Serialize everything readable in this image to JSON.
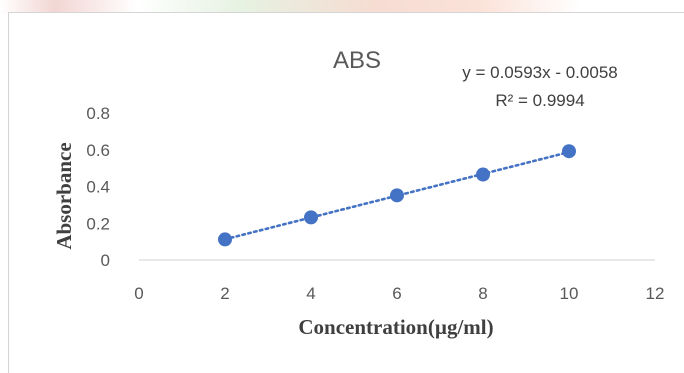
{
  "colors": {
    "series": "#4472c4",
    "axis_text": "#595959",
    "gridline": "#d9d9d9"
  },
  "chart_data": {
    "type": "scatter",
    "title": "ABS",
    "xlabel": "Concentration(µg/ml)",
    "ylabel": "Absorbance",
    "xlim": [
      0,
      12
    ],
    "ylim": [
      0,
      0.8
    ],
    "x_ticks": [
      0,
      2,
      4,
      6,
      8,
      10,
      12
    ],
    "y_ticks": [
      0,
      0.2,
      0.4,
      0.6,
      0.8
    ],
    "y_tick_labels": [
      "0",
      "0.2",
      "0.4",
      "0.6",
      "0.8"
    ],
    "x": [
      2,
      4,
      6,
      8,
      10
    ],
    "y": [
      0.112,
      0.232,
      0.352,
      0.465,
      0.592
    ],
    "trendline": {
      "type": "linear",
      "style": "dotted",
      "slope": 0.0593,
      "intercept": -0.0058,
      "equation": "y = 0.0593x - 0.0058",
      "r_squared": "R² = 0.9994"
    },
    "grid": {
      "horizontal": false,
      "vertical": false
    }
  }
}
